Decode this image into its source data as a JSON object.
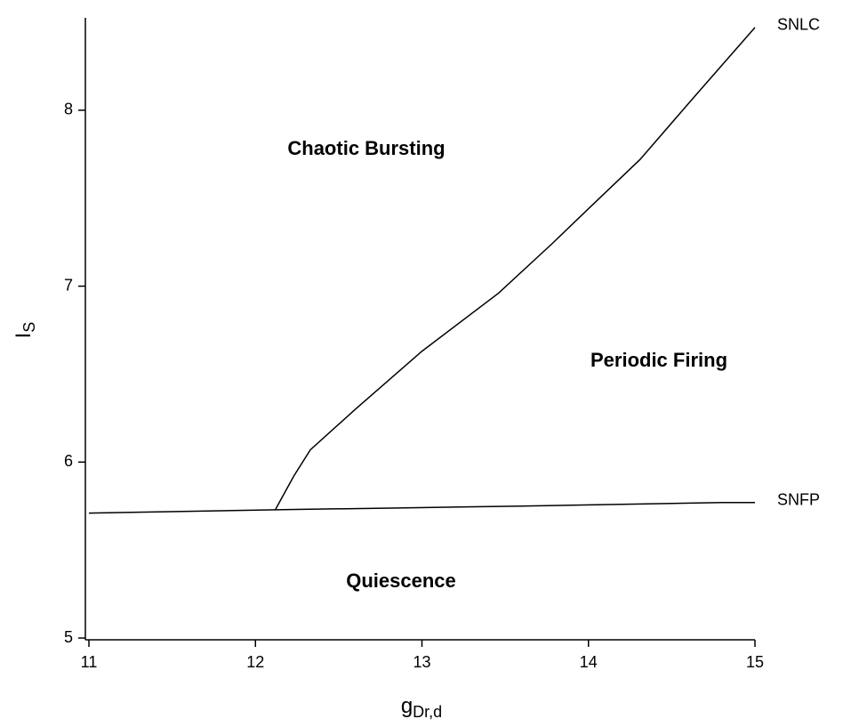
{
  "chart_data": {
    "type": "line",
    "xlabel": {
      "base": "g",
      "sub": "Dr,d"
    },
    "ylabel": {
      "base": "I",
      "sub": "S"
    },
    "xlim": [
      11,
      15
    ],
    "ylim": [
      5,
      8.5
    ],
    "xticks": [
      11,
      12,
      13,
      14,
      15
    ],
    "yticks": [
      5,
      6,
      7,
      8
    ],
    "series": [
      {
        "name": "SNLC",
        "color": "#000000",
        "x": [
          12.12,
          12.23,
          12.33,
          12.6,
          13.0,
          13.46,
          13.78,
          14.0,
          14.31,
          14.63,
          15.0
        ],
        "values": [
          5.73,
          5.92,
          6.07,
          6.3,
          6.63,
          6.96,
          7.24,
          7.44,
          7.72,
          8.07,
          8.47
        ]
      },
      {
        "name": "SNFP",
        "color": "#000000",
        "x": [
          11,
          11.6,
          12.2,
          12.9,
          13.6,
          14.2,
          14.8,
          15.0
        ],
        "values": [
          5.71,
          5.72,
          5.73,
          5.74,
          5.75,
          5.76,
          5.77,
          5.77
        ]
      }
    ],
    "annotations": [
      "Chaotic Bursting",
      "Periodic Firing",
      "Quiescence"
    ]
  }
}
